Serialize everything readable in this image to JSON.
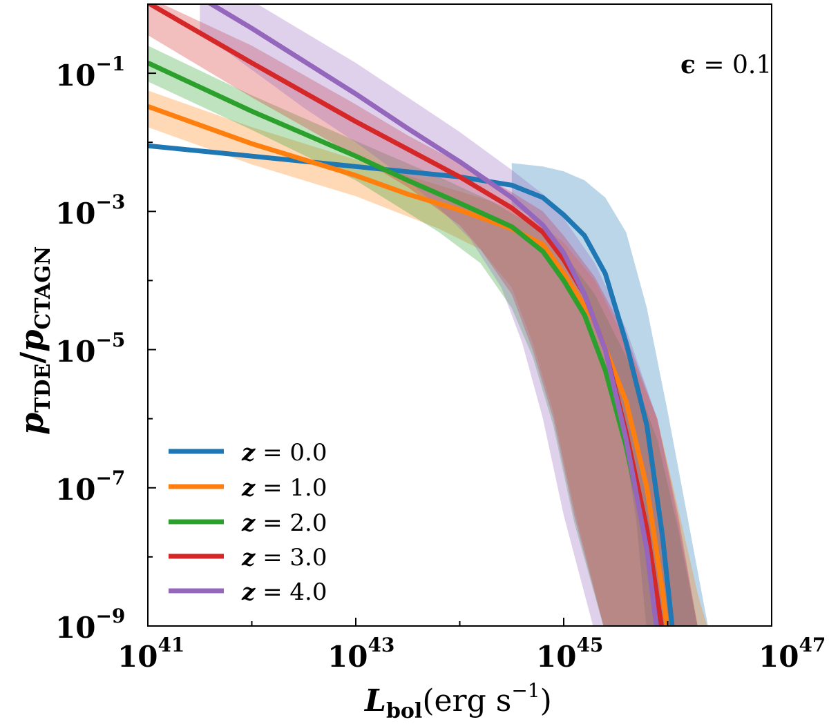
{
  "chart_data": {
    "type": "line",
    "title": "",
    "annotation": {
      "symbol": "ϵ",
      "text": " = 0.1"
    },
    "xlabel": {
      "main": "L",
      "sub": "bol",
      "unit": "(erg s",
      "unit_exp": "−1",
      "close": ")"
    },
    "ylabel": {
      "num": "p",
      "num_sub": "TDE",
      "den": "p",
      "den_sub": "CTAGN"
    },
    "xscale": "log",
    "yscale": "log",
    "xlim_log10": [
      41,
      47
    ],
    "ylim_log10": [
      -9,
      0
    ],
    "x_ticks": [
      {
        "base": "10",
        "exp": "41"
      },
      {
        "base": "10",
        "exp": "43"
      },
      {
        "base": "10",
        "exp": "45"
      },
      {
        "base": "10",
        "exp": "47"
      }
    ],
    "y_ticks": [
      {
        "base": "10",
        "exp": "−1"
      },
      {
        "base": "10",
        "exp": "−3"
      },
      {
        "base": "10",
        "exp": "−5"
      },
      {
        "base": "10",
        "exp": "−7"
      },
      {
        "base": "10",
        "exp": "−9"
      }
    ],
    "legend_position": "lower-left",
    "series": [
      {
        "name": "z = 0.0",
        "label_var": "z",
        "label_val": " = 0.0",
        "color": "#1f77b4",
        "line": [
          [
            41,
            -2.05
          ],
          [
            42,
            -2.2
          ],
          [
            43,
            -2.35
          ],
          [
            44,
            -2.5
          ],
          [
            44.5,
            -2.62
          ],
          [
            44.8,
            -2.8
          ],
          [
            45,
            -3.05
          ],
          [
            45.2,
            -3.35
          ],
          [
            45.4,
            -3.9
          ],
          [
            45.6,
            -4.9
          ],
          [
            45.8,
            -6.1
          ],
          [
            45.95,
            -7.7
          ],
          [
            46.05,
            -9.1
          ]
        ],
        "band_upper": [
          [
            44.5,
            -2.3
          ],
          [
            44.8,
            -2.35
          ],
          [
            45,
            -2.42
          ],
          [
            45.2,
            -2.55
          ],
          [
            45.4,
            -2.8
          ],
          [
            45.6,
            -3.3
          ],
          [
            45.8,
            -4.4
          ],
          [
            46,
            -5.9
          ],
          [
            46.2,
            -7.5
          ],
          [
            46.4,
            -9.1
          ]
        ],
        "band_lower": [
          [
            45.8,
            -9.1
          ],
          [
            45.7,
            -7.5
          ],
          [
            45.55,
            -6.0
          ],
          [
            45.4,
            -5.0
          ],
          [
            45.2,
            -4.2
          ],
          [
            45,
            -3.6
          ],
          [
            44.8,
            -3.2
          ],
          [
            44.5,
            -2.9
          ]
        ]
      },
      {
        "name": "z = 1.0",
        "label_var": "z",
        "label_val": " = 1.0",
        "color": "#ff7f0e",
        "line": [
          [
            41,
            -1.48
          ],
          [
            42,
            -2.02
          ],
          [
            43,
            -2.48
          ],
          [
            43.5,
            -2.75
          ],
          [
            44,
            -2.98
          ],
          [
            44.5,
            -3.25
          ],
          [
            44.8,
            -3.48
          ],
          [
            45,
            -3.9
          ],
          [
            45.3,
            -4.6
          ],
          [
            45.6,
            -5.75
          ],
          [
            45.8,
            -7.0
          ],
          [
            45.95,
            -8.5
          ],
          [
            46,
            -9.1
          ]
        ],
        "band_upper": [
          [
            41,
            -1.25
          ],
          [
            42,
            -1.78
          ],
          [
            43,
            -2.25
          ],
          [
            43.8,
            -2.62
          ],
          [
            44.3,
            -2.85
          ],
          [
            44.7,
            -3.1
          ],
          [
            45,
            -3.45
          ],
          [
            45.3,
            -4.0
          ],
          [
            45.6,
            -4.9
          ],
          [
            45.9,
            -6.0
          ],
          [
            46.1,
            -7.3
          ],
          [
            46.3,
            -8.6
          ],
          [
            46.4,
            -9.1
          ]
        ],
        "band_lower": [
          [
            45.4,
            -9.1
          ],
          [
            45.1,
            -7.3
          ],
          [
            44.9,
            -5.9
          ],
          [
            44.7,
            -4.9
          ],
          [
            44.5,
            -4.1
          ],
          [
            44.2,
            -3.55
          ],
          [
            43.8,
            -3.25
          ],
          [
            43,
            -2.78
          ],
          [
            42,
            -2.32
          ],
          [
            41,
            -1.78
          ]
        ]
      },
      {
        "name": "z = 2.0",
        "label_var": "z",
        "label_val": " = 2.0",
        "color": "#2ca02c",
        "line": [
          [
            41,
            -0.85
          ],
          [
            42,
            -1.55
          ],
          [
            43,
            -2.2
          ],
          [
            43.5,
            -2.55
          ],
          [
            44,
            -2.88
          ],
          [
            44.5,
            -3.22
          ],
          [
            44.8,
            -3.58
          ],
          [
            45,
            -4.0
          ],
          [
            45.2,
            -4.5
          ],
          [
            45.4,
            -5.3
          ],
          [
            45.6,
            -6.4
          ],
          [
            45.8,
            -7.8
          ],
          [
            45.9,
            -9.1
          ]
        ],
        "band_upper": [
          [
            41,
            -0.6
          ],
          [
            42,
            -1.32
          ],
          [
            43,
            -1.98
          ],
          [
            43.8,
            -2.5
          ],
          [
            44.3,
            -2.85
          ],
          [
            44.7,
            -3.2
          ],
          [
            45,
            -3.6
          ],
          [
            45.3,
            -4.2
          ],
          [
            45.6,
            -5.1
          ],
          [
            45.9,
            -6.3
          ],
          [
            46.1,
            -7.6
          ],
          [
            46.3,
            -9.1
          ]
        ],
        "band_lower": [
          [
            45.4,
            -9.1
          ],
          [
            45.1,
            -7.5
          ],
          [
            44.9,
            -6.1
          ],
          [
            44.7,
            -5.1
          ],
          [
            44.5,
            -4.4
          ],
          [
            44.2,
            -3.75
          ],
          [
            43.8,
            -3.3
          ],
          [
            43,
            -2.55
          ],
          [
            42,
            -1.82
          ],
          [
            41,
            -1.12
          ]
        ]
      },
      {
        "name": "z = 3.0",
        "label_var": "z",
        "label_val": " = 3.0",
        "color": "#d62728",
        "line": [
          [
            41,
            0.02
          ],
          [
            42,
            -0.85
          ],
          [
            43,
            -1.7
          ],
          [
            43.5,
            -2.1
          ],
          [
            44,
            -2.5
          ],
          [
            44.5,
            -2.95
          ],
          [
            44.8,
            -3.3
          ],
          [
            45,
            -3.7
          ],
          [
            45.2,
            -4.2
          ],
          [
            45.4,
            -5.0
          ],
          [
            45.6,
            -6.2
          ],
          [
            45.8,
            -7.6
          ],
          [
            45.95,
            -9.1
          ]
        ],
        "band_upper": [
          [
            41,
            0.1
          ],
          [
            42,
            -0.6
          ],
          [
            43,
            -1.45
          ],
          [
            43.5,
            -1.9
          ],
          [
            44,
            -2.3
          ],
          [
            44.5,
            -2.72
          ],
          [
            44.8,
            -3.0
          ],
          [
            45,
            -3.35
          ],
          [
            45.3,
            -3.95
          ],
          [
            45.6,
            -4.8
          ],
          [
            45.9,
            -6.0
          ],
          [
            46.1,
            -7.4
          ],
          [
            46.3,
            -9.1
          ]
        ],
        "band_lower": [
          [
            45.4,
            -9.1
          ],
          [
            45.1,
            -7.4
          ],
          [
            44.9,
            -6.0
          ],
          [
            44.7,
            -5.0
          ],
          [
            44.5,
            -4.2
          ],
          [
            44.2,
            -3.55
          ],
          [
            44,
            -3.2
          ],
          [
            43.5,
            -2.65
          ],
          [
            43,
            -2.2
          ],
          [
            42,
            -1.35
          ],
          [
            41,
            -0.45
          ]
        ]
      },
      {
        "name": "z = 4.0",
        "label_var": "z",
        "label_val": " = 4.0",
        "color": "#9467bd",
        "line": [
          [
            41.5,
            0.1
          ],
          [
            42,
            -0.35
          ],
          [
            43,
            -1.3
          ],
          [
            43.5,
            -1.8
          ],
          [
            44,
            -2.28
          ],
          [
            44.5,
            -2.8
          ],
          [
            44.8,
            -3.2
          ],
          [
            45,
            -3.6
          ],
          [
            45.2,
            -4.2
          ],
          [
            45.4,
            -5.0
          ],
          [
            45.6,
            -6.3
          ],
          [
            45.8,
            -7.9
          ],
          [
            45.9,
            -9.1
          ]
        ],
        "band_upper": [
          [
            41.5,
            0.1
          ],
          [
            42,
            0.05
          ],
          [
            43,
            -0.85
          ],
          [
            43.5,
            -1.35
          ],
          [
            44,
            -1.85
          ],
          [
            44.5,
            -2.4
          ],
          [
            44.8,
            -2.75
          ],
          [
            45,
            -3.1
          ],
          [
            45.3,
            -3.75
          ],
          [
            45.6,
            -4.7
          ],
          [
            45.9,
            -6.0
          ],
          [
            46.1,
            -7.5
          ],
          [
            46.3,
            -9.1
          ]
        ],
        "band_lower": [
          [
            45.3,
            -9.1
          ],
          [
            45.0,
            -7.4
          ],
          [
            44.8,
            -6.0
          ],
          [
            44.6,
            -4.9
          ],
          [
            44.4,
            -4.1
          ],
          [
            44.1,
            -3.4
          ],
          [
            43.8,
            -2.95
          ],
          [
            43.5,
            -2.55
          ],
          [
            43,
            -2.0
          ],
          [
            42.5,
            -1.5
          ],
          [
            42,
            -0.95
          ],
          [
            41.5,
            -0.4
          ]
        ]
      }
    ]
  }
}
